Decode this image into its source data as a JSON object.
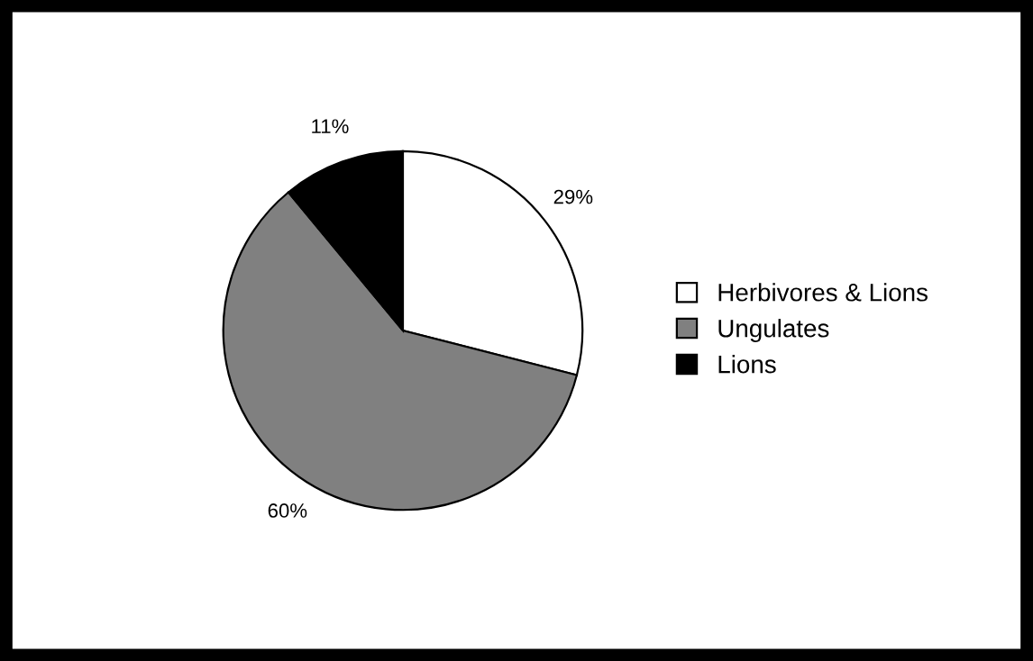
{
  "chart_data": {
    "type": "pie",
    "categories": [
      "Herbivores & Lions",
      "Ungulates",
      "Lions"
    ],
    "values": [
      29,
      60,
      11
    ],
    "value_labels": [
      "29%",
      "60%",
      "11%"
    ],
    "colors": [
      "#ffffff",
      "#808080",
      "#000000"
    ],
    "legend": "right"
  }
}
